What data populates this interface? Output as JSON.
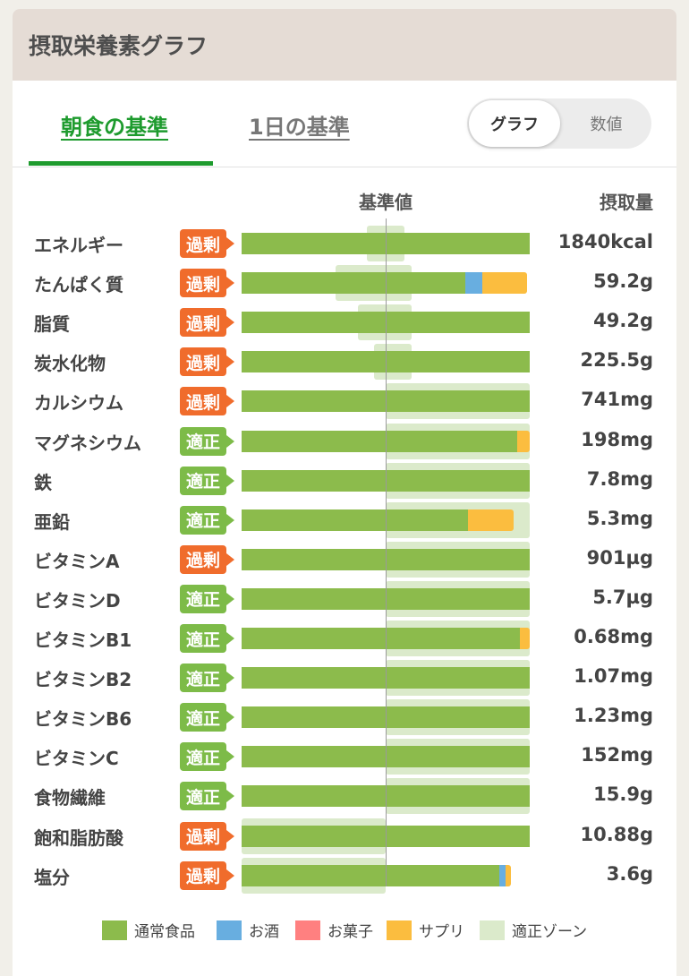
{
  "header": {
    "title": "摂取栄養素グラフ"
  },
  "tabs": [
    {
      "label": "朝食の基準",
      "active": true
    },
    {
      "label": "1日の基準",
      "active": false
    }
  ],
  "view_toggle": {
    "options": [
      "グラフ",
      "数値"
    ],
    "selected": "グラフ"
  },
  "columns": {
    "reference": "基準値",
    "amount": "摂取量"
  },
  "colors": {
    "normal_food": "#8cbb4c",
    "alcohol": "#68aee0",
    "snacks": "#ff8080",
    "supplement": "#fbbd3f",
    "proper_zone": "#dbeacb",
    "over_badge": "#f06c2c",
    "ok_badge": "#7dbb48"
  },
  "chart_data": {
    "type": "bar",
    "orientation": "horizontal",
    "stacked": true,
    "reference_label": "基準値",
    "value_label": "摂取量",
    "value_unit": "percent of 基準値 (estimated)",
    "categories": [
      "エネルギー",
      "たんぱく質",
      "脂質",
      "炭水化物",
      "カルシウム",
      "マグネシウム",
      "鉄",
      "亜鉛",
      "ビタミンA",
      "ビタミンD",
      "ビタミンB1",
      "ビタミンB2",
      "ビタミンB6",
      "ビタミンC",
      "食物繊維",
      "飽和脂肪酸",
      "塩分"
    ],
    "series": [
      {
        "name": "通常食品",
        "values": [
          200,
          155,
          200,
          200,
          200,
          191,
          200,
          157,
          200,
          200,
          193,
          200,
          200,
          200,
          200,
          200,
          179
        ]
      },
      {
        "name": "お酒",
        "values": [
          0,
          12,
          0,
          0,
          0,
          0,
          0,
          0,
          0,
          0,
          0,
          0,
          0,
          0,
          0,
          0,
          4
        ]
      },
      {
        "name": "お菓子",
        "values": [
          0,
          0,
          0,
          0,
          0,
          0,
          0,
          0,
          0,
          0,
          0,
          0,
          0,
          0,
          0,
          0,
          0
        ]
      },
      {
        "name": "サプリ",
        "values": [
          0,
          31,
          0,
          0,
          0,
          9,
          0,
          32,
          0,
          0,
          7,
          0,
          0,
          0,
          0,
          0,
          4
        ]
      }
    ],
    "proper_zone_name": "適正ゾーン",
    "proper_zone": [
      [
        87,
        113
      ],
      [
        65,
        118
      ],
      [
        81,
        118
      ],
      [
        92,
        118
      ],
      [
        100,
        200
      ],
      [
        100,
        200
      ],
      [
        100,
        200
      ],
      [
        100,
        200
      ],
      [
        100,
        200
      ],
      [
        100,
        200
      ],
      [
        100,
        200
      ],
      [
        100,
        200
      ],
      [
        100,
        200
      ],
      [
        100,
        200
      ],
      [
        100,
        200
      ],
      [
        0,
        100
      ],
      [
        0,
        100
      ]
    ],
    "status": [
      "過剰",
      "過剰",
      "過剰",
      "過剰",
      "過剰",
      "適正",
      "適正",
      "適正",
      "過剰",
      "適正",
      "適正",
      "適正",
      "適正",
      "適正",
      "適正",
      "過剰",
      "過剰"
    ],
    "amounts": [
      "1840kcal",
      "59.2g",
      "49.2g",
      "225.5g",
      "741mg",
      "198mg",
      "7.8mg",
      "5.3mg",
      "901µg",
      "5.7µg",
      "0.68mg",
      "1.07mg",
      "1.23mg",
      "152mg",
      "15.9g",
      "10.88g",
      "3.6g"
    ],
    "xlim": [
      0,
      200
    ],
    "legend_position": "bottom"
  },
  "legend": [
    "通常食品",
    "お酒",
    "お菓子",
    "サプリ",
    "適正ゾーン"
  ]
}
